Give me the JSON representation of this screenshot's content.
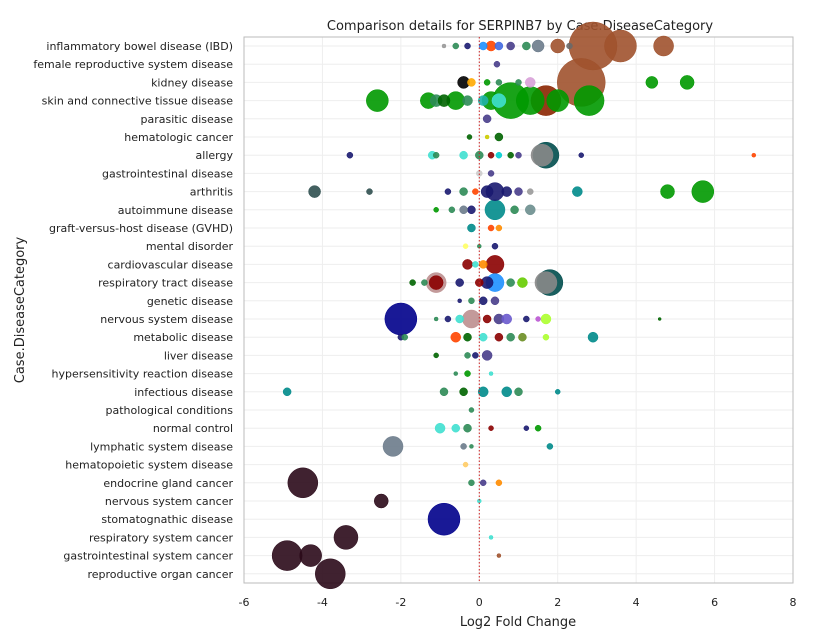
{
  "chart_data": {
    "type": "scatter",
    "title": "Comparison details for SERPINB7 by Case.DiseaseCategory",
    "xlabel": "Log2 Fold Change",
    "ylabel": "Case.DiseaseCategory",
    "xlim": [
      -6,
      8
    ],
    "xticks": [
      -6,
      -4,
      -2,
      0,
      2,
      4,
      6,
      8
    ],
    "reference_line_x": 0,
    "categories": [
      "inflammatory bowel disease (IBD)",
      "female reproductive system disease",
      "kidney disease",
      "skin and connective tissue disease",
      "parasitic disease",
      "hematologic cancer",
      "allergy",
      "gastrointestinal disease",
      "arthritis",
      "autoimmune disease",
      "graft-versus-host disease (GVHD)",
      "mental disorder",
      "cardiovascular disease",
      "respiratory tract disease",
      "genetic disease",
      "nervous system disease",
      "metabolic disease",
      "liver disease",
      "hypersensitivity reaction disease",
      "infectious disease",
      "pathological conditions",
      "normal control",
      "lymphatic system disease",
      "hematopoietic system disease",
      "endocrine gland cancer",
      "nervous system cancer",
      "stomatognathic disease",
      "respiratory system cancer",
      "gastrointestinal system cancer",
      "reproductive organ cancer"
    ],
    "points": [
      {
        "cat": 0,
        "x": 2.9,
        "s": 24,
        "color": "#a0522d"
      },
      {
        "cat": 0,
        "x": 3.6,
        "s": 16,
        "color": "#a0522d"
      },
      {
        "cat": 0,
        "x": 4.7,
        "s": 10,
        "color": "#a0522d"
      },
      {
        "cat": 0,
        "x": 2.0,
        "s": 7,
        "color": "#a0522d"
      },
      {
        "cat": 0,
        "x": 1.5,
        "s": 6,
        "color": "#6b7b8b"
      },
      {
        "cat": 0,
        "x": 1.2,
        "s": 4,
        "color": "#2e8b57"
      },
      {
        "cat": 0,
        "x": 0.8,
        "s": 4,
        "color": "#483d8b"
      },
      {
        "cat": 0,
        "x": 0.5,
        "s": 4,
        "color": "#4169e1"
      },
      {
        "cat": 0,
        "x": 0.3,
        "s": 5,
        "color": "#ff4500"
      },
      {
        "cat": 0,
        "x": 0.1,
        "s": 4,
        "color": "#1e90ff"
      },
      {
        "cat": 0,
        "x": -0.3,
        "s": 3,
        "color": "#191970"
      },
      {
        "cat": 0,
        "x": -0.6,
        "s": 3,
        "color": "#2e8b57"
      },
      {
        "cat": 0,
        "x": -0.9,
        "s": 2,
        "color": "#999999"
      },
      {
        "cat": 0,
        "x": 2.3,
        "s": 3,
        "color": "#696969"
      },
      {
        "cat": 1,
        "x": 0.45,
        "s": 3,
        "color": "#483d8b"
      },
      {
        "cat": 2,
        "x": 2.6,
        "s": 24,
        "color": "#a0522d"
      },
      {
        "cat": 2,
        "x": 4.4,
        "s": 6,
        "color": "#009900"
      },
      {
        "cat": 2,
        "x": 5.3,
        "s": 7,
        "color": "#009900"
      },
      {
        "cat": 2,
        "x": 1.3,
        "s": 5,
        "color": "#d8a0d8"
      },
      {
        "cat": 2,
        "x": -0.4,
        "s": 6,
        "color": "#000000"
      },
      {
        "cat": 2,
        "x": -0.2,
        "s": 4,
        "color": "#ffaa00"
      },
      {
        "cat": 2,
        "x": 0.5,
        "s": 3,
        "color": "#2e8b57"
      },
      {
        "cat": 2,
        "x": 0.2,
        "s": 3,
        "color": "#009900"
      },
      {
        "cat": 2,
        "x": 1.0,
        "s": 3,
        "color": "#2e8b57"
      },
      {
        "cat": 3,
        "x": -2.6,
        "s": 11,
        "color": "#009900"
      },
      {
        "cat": 3,
        "x": 2.8,
        "s": 15,
        "color": "#009900"
      },
      {
        "cat": 3,
        "x": 1.7,
        "s": 15,
        "color": "#8b2500"
      },
      {
        "cat": 3,
        "x": 0.8,
        "s": 18,
        "color": "#009900"
      },
      {
        "cat": 3,
        "x": 1.3,
        "s": 14,
        "color": "#009900"
      },
      {
        "cat": 3,
        "x": 2.0,
        "s": 11,
        "color": "#009900"
      },
      {
        "cat": 3,
        "x": 0.3,
        "s": 9,
        "color": "#009900"
      },
      {
        "cat": 3,
        "x": -0.6,
        "s": 9,
        "color": "#009900"
      },
      {
        "cat": 3,
        "x": -1.3,
        "s": 8,
        "color": "#009900"
      },
      {
        "cat": 3,
        "x": -1.1,
        "s": 6,
        "color": "#2e8b57"
      },
      {
        "cat": 3,
        "x": -0.9,
        "s": 6,
        "color": "#006400"
      },
      {
        "cat": 3,
        "x": -0.3,
        "s": 5,
        "color": "#2e8b57"
      },
      {
        "cat": 3,
        "x": 0.1,
        "s": 5,
        "color": "#20b2aa"
      },
      {
        "cat": 3,
        "x": 0.5,
        "s": 7,
        "color": "#40e0d0"
      },
      {
        "cat": 4,
        "x": 0.2,
        "s": 4,
        "color": "#483d8b"
      },
      {
        "cat": 5,
        "x": -0.25,
        "s": 2.5,
        "color": "#006400"
      },
      {
        "cat": 5,
        "x": 0.2,
        "s": 2,
        "color": "#cccc00"
      },
      {
        "cat": 5,
        "x": 0.5,
        "s": 4,
        "color": "#006400"
      },
      {
        "cat": 6,
        "x": 1.7,
        "s": 13,
        "color": "#004d4d"
      },
      {
        "cat": 6,
        "x": 1.6,
        "s": 11,
        "color": "#888888"
      },
      {
        "cat": 6,
        "x": 7.0,
        "s": 2,
        "color": "#ff4500"
      },
      {
        "cat": 6,
        "x": -3.3,
        "s": 3,
        "color": "#191970"
      },
      {
        "cat": 6,
        "x": -1.2,
        "s": 4,
        "color": "#40e0d0"
      },
      {
        "cat": 6,
        "x": -1.1,
        "s": 3,
        "color": "#2e8b57"
      },
      {
        "cat": 6,
        "x": -0.4,
        "s": 4,
        "color": "#40e0d0"
      },
      {
        "cat": 6,
        "x": 0.0,
        "s": 4,
        "color": "#2e8b57"
      },
      {
        "cat": 6,
        "x": 0.3,
        "s": 3,
        "color": "#8b0000"
      },
      {
        "cat": 6,
        "x": 0.5,
        "s": 3,
        "color": "#00ced1"
      },
      {
        "cat": 6,
        "x": 0.8,
        "s": 3,
        "color": "#006400"
      },
      {
        "cat": 6,
        "x": 1.0,
        "s": 3,
        "color": "#483d8b"
      },
      {
        "cat": 6,
        "x": 2.6,
        "s": 2.5,
        "color": "#191970"
      },
      {
        "cat": 7,
        "x": 0.0,
        "s": 3,
        "color": "#cccccc"
      },
      {
        "cat": 7,
        "x": 0.3,
        "s": 3,
        "color": "#483d8b"
      },
      {
        "cat": 8,
        "x": 5.7,
        "s": 11,
        "color": "#009900"
      },
      {
        "cat": 8,
        "x": 4.8,
        "s": 7,
        "color": "#009900"
      },
      {
        "cat": 8,
        "x": 2.5,
        "s": 5,
        "color": "#008b8b"
      },
      {
        "cat": 8,
        "x": 0.4,
        "s": 9,
        "color": "#191970"
      },
      {
        "cat": 8,
        "x": 0.2,
        "s": 6,
        "color": "#191970"
      },
      {
        "cat": 8,
        "x": 0.7,
        "s": 5,
        "color": "#191970"
      },
      {
        "cat": 8,
        "x": 1.0,
        "s": 4,
        "color": "#483d8b"
      },
      {
        "cat": 8,
        "x": -4.2,
        "s": 6,
        "color": "#2f4f4f"
      },
      {
        "cat": 8,
        "x": -2.8,
        "s": 3,
        "color": "#2f4f4f"
      },
      {
        "cat": 8,
        "x": -0.8,
        "s": 3,
        "color": "#191970"
      },
      {
        "cat": 8,
        "x": -0.4,
        "s": 4,
        "color": "#2e8b57"
      },
      {
        "cat": 8,
        "x": -0.1,
        "s": 3,
        "color": "#ff4500"
      },
      {
        "cat": 8,
        "x": 1.3,
        "s": 3,
        "color": "#999999"
      },
      {
        "cat": 9,
        "x": 0.4,
        "s": 10,
        "color": "#008b8b"
      },
      {
        "cat": 9,
        "x": 1.3,
        "s": 5,
        "color": "#6b8e8e"
      },
      {
        "cat": 9,
        "x": 0.9,
        "s": 4,
        "color": "#2e8b57"
      },
      {
        "cat": 9,
        "x": -0.2,
        "s": 4,
        "color": "#191970"
      },
      {
        "cat": 9,
        "x": -0.4,
        "s": 4,
        "color": "#6b7b8b"
      },
      {
        "cat": 9,
        "x": -0.7,
        "s": 3,
        "color": "#2e8b57"
      },
      {
        "cat": 9,
        "x": -1.1,
        "s": 2.5,
        "color": "#009900"
      },
      {
        "cat": 10,
        "x": -0.2,
        "s": 4,
        "color": "#008b8b"
      },
      {
        "cat": 10,
        "x": 0.3,
        "s": 3,
        "color": "#ff4500"
      },
      {
        "cat": 10,
        "x": 0.5,
        "s": 3,
        "color": "#ff8c00"
      },
      {
        "cat": 11,
        "x": -0.35,
        "s": 2.5,
        "color": "#ffff66"
      },
      {
        "cat": 11,
        "x": 0.0,
        "s": 2,
        "color": "#2e8b57"
      },
      {
        "cat": 11,
        "x": 0.4,
        "s": 3,
        "color": "#191970"
      },
      {
        "cat": 12,
        "x": 0.4,
        "s": 9,
        "color": "#8b0000"
      },
      {
        "cat": 12,
        "x": -0.3,
        "s": 5,
        "color": "#8b0000"
      },
      {
        "cat": 12,
        "x": 0.1,
        "s": 4,
        "color": "#ff8c00"
      },
      {
        "cat": 12,
        "x": -0.1,
        "s": 3,
        "color": "#40e0d0"
      },
      {
        "cat": 13,
        "x": 1.8,
        "s": 13,
        "color": "#004d4d"
      },
      {
        "cat": 13,
        "x": 1.7,
        "s": 11,
        "color": "#888888"
      },
      {
        "cat": 13,
        "x": -1.1,
        "s": 10,
        "color": "#bc8f8f"
      },
      {
        "cat": 13,
        "x": -1.1,
        "s": 7,
        "color": "#8b0000"
      },
      {
        "cat": 13,
        "x": 0.4,
        "s": 9,
        "color": "#1e90ff"
      },
      {
        "cat": 13,
        "x": 0.2,
        "s": 6,
        "color": "#191970"
      },
      {
        "cat": 13,
        "x": 1.1,
        "s": 5,
        "color": "#66cc00"
      },
      {
        "cat": 13,
        "x": 0.8,
        "s": 4,
        "color": "#2e8b57"
      },
      {
        "cat": 13,
        "x": -1.7,
        "s": 3,
        "color": "#006400"
      },
      {
        "cat": 13,
        "x": -1.4,
        "s": 3,
        "color": "#2e8b57"
      },
      {
        "cat": 13,
        "x": -0.5,
        "s": 4,
        "color": "#191970"
      },
      {
        "cat": 13,
        "x": 0.0,
        "s": 4,
        "color": "#8b0000"
      },
      {
        "cat": 14,
        "x": 0.4,
        "s": 4,
        "color": "#483d8b"
      },
      {
        "cat": 14,
        "x": 0.1,
        "s": 4,
        "color": "#191970"
      },
      {
        "cat": 14,
        "x": -0.2,
        "s": 3,
        "color": "#2e8b57"
      },
      {
        "cat": 14,
        "x": -0.5,
        "s": 2,
        "color": "#191970"
      },
      {
        "cat": 15,
        "x": -2.0,
        "s": 16,
        "color": "#00008b"
      },
      {
        "cat": 15,
        "x": -0.2,
        "s": 9,
        "color": "#bc8f8f"
      },
      {
        "cat": 15,
        "x": 1.7,
        "s": 5,
        "color": "#adff2f"
      },
      {
        "cat": 15,
        "x": 4.6,
        "s": 1.5,
        "color": "#006400"
      },
      {
        "cat": 15,
        "x": 0.5,
        "s": 5,
        "color": "#483d8b"
      },
      {
        "cat": 15,
        "x": 0.7,
        "s": 5,
        "color": "#6a5acd"
      },
      {
        "cat": 15,
        "x": 0.2,
        "s": 4,
        "color": "#8b0000"
      },
      {
        "cat": 15,
        "x": -0.5,
        "s": 4,
        "color": "#40e0d0"
      },
      {
        "cat": 15,
        "x": -0.8,
        "s": 3,
        "color": "#191970"
      },
      {
        "cat": 15,
        "x": -1.1,
        "s": 2,
        "color": "#2e8b57"
      },
      {
        "cat": 15,
        "x": 1.5,
        "s": 2.5,
        "color": "#ba55d3"
      },
      {
        "cat": 15,
        "x": 1.2,
        "s": 3,
        "color": "#191970"
      },
      {
        "cat": 16,
        "x": 2.9,
        "s": 5,
        "color": "#008b8b"
      },
      {
        "cat": 16,
        "x": -0.6,
        "s": 5,
        "color": "#ff4500"
      },
      {
        "cat": 16,
        "x": -2.0,
        "s": 3,
        "color": "#191970"
      },
      {
        "cat": 16,
        "x": -1.9,
        "s": 3,
        "color": "#2e8b57"
      },
      {
        "cat": 16,
        "x": -0.3,
        "s": 4,
        "color": "#006400"
      },
      {
        "cat": 16,
        "x": 0.1,
        "s": 4,
        "color": "#40e0d0"
      },
      {
        "cat": 16,
        "x": 0.5,
        "s": 4,
        "color": "#8b0000"
      },
      {
        "cat": 16,
        "x": 0.8,
        "s": 4,
        "color": "#2e8b57"
      },
      {
        "cat": 16,
        "x": 1.1,
        "s": 4,
        "color": "#6b8e23"
      },
      {
        "cat": 16,
        "x": 1.7,
        "s": 3,
        "color": "#adff2f"
      },
      {
        "cat": 17,
        "x": 0.2,
        "s": 5,
        "color": "#483d8b"
      },
      {
        "cat": 17,
        "x": -0.1,
        "s": 3,
        "color": "#191970"
      },
      {
        "cat": 17,
        "x": -0.3,
        "s": 3,
        "color": "#2e8b57"
      },
      {
        "cat": 17,
        "x": -1.1,
        "s": 2.5,
        "color": "#006400"
      },
      {
        "cat": 18,
        "x": -0.3,
        "s": 3,
        "color": "#009900"
      },
      {
        "cat": 18,
        "x": -0.6,
        "s": 2,
        "color": "#2e8b57"
      },
      {
        "cat": 18,
        "x": 0.3,
        "s": 2,
        "color": "#40e0d0"
      },
      {
        "cat": 19,
        "x": -4.9,
        "s": 4,
        "color": "#008b8b"
      },
      {
        "cat": 19,
        "x": 0.7,
        "s": 5,
        "color": "#008b8b"
      },
      {
        "cat": 19,
        "x": 0.1,
        "s": 5,
        "color": "#008b8b"
      },
      {
        "cat": 19,
        "x": 2.0,
        "s": 2.5,
        "color": "#008b8b"
      },
      {
        "cat": 19,
        "x": -0.9,
        "s": 4,
        "color": "#2e8b57"
      },
      {
        "cat": 19,
        "x": -0.4,
        "s": 4,
        "color": "#006400"
      },
      {
        "cat": 19,
        "x": 1.0,
        "s": 4,
        "color": "#2e8b57"
      },
      {
        "cat": 20,
        "x": -0.2,
        "s": 2.5,
        "color": "#2e8b57"
      },
      {
        "cat": 21,
        "x": -1.0,
        "s": 5,
        "color": "#40e0d0"
      },
      {
        "cat": 21,
        "x": -0.6,
        "s": 4,
        "color": "#40e0d0"
      },
      {
        "cat": 21,
        "x": -0.3,
        "s": 4,
        "color": "#2e8b57"
      },
      {
        "cat": 21,
        "x": 1.5,
        "s": 3,
        "color": "#009900"
      },
      {
        "cat": 21,
        "x": 0.3,
        "s": 2.5,
        "color": "#8b0000"
      },
      {
        "cat": 21,
        "x": 1.2,
        "s": 2.5,
        "color": "#191970"
      },
      {
        "cat": 22,
        "x": -2.2,
        "s": 10,
        "color": "#6b7b8b"
      },
      {
        "cat": 22,
        "x": -0.4,
        "s": 3,
        "color": "#6b7b8b"
      },
      {
        "cat": 22,
        "x": 1.8,
        "s": 3,
        "color": "#008b8b"
      },
      {
        "cat": 22,
        "x": -0.2,
        "s": 2,
        "color": "#2e8b57"
      },
      {
        "cat": 23,
        "x": -0.35,
        "s": 2.5,
        "color": "#ffcc66"
      },
      {
        "cat": 24,
        "x": -4.5,
        "s": 15,
        "color": "#2b0a1a"
      },
      {
        "cat": 24,
        "x": 0.5,
        "s": 3,
        "color": "#ff8c00"
      },
      {
        "cat": 24,
        "x": -0.2,
        "s": 3,
        "color": "#2e8b57"
      },
      {
        "cat": 24,
        "x": 0.1,
        "s": 3,
        "color": "#483d8b"
      },
      {
        "cat": 25,
        "x": -2.5,
        "s": 7,
        "color": "#2b0a1a"
      },
      {
        "cat": 25,
        "x": 0.0,
        "s": 2,
        "color": "#40e0d0"
      },
      {
        "cat": 26,
        "x": -0.9,
        "s": 16,
        "color": "#00008b"
      },
      {
        "cat": 27,
        "x": -3.4,
        "s": 12,
        "color": "#2b0a1a"
      },
      {
        "cat": 27,
        "x": 0.3,
        "s": 2,
        "color": "#40e0d0"
      },
      {
        "cat": 28,
        "x": -4.9,
        "s": 15,
        "color": "#2b0a1a"
      },
      {
        "cat": 28,
        "x": -4.3,
        "s": 11,
        "color": "#2b0a1a"
      },
      {
        "cat": 28,
        "x": 0.5,
        "s": 2,
        "color": "#a0522d"
      },
      {
        "cat": 29,
        "x": -3.8,
        "s": 15,
        "color": "#2b0a1a"
      }
    ]
  }
}
